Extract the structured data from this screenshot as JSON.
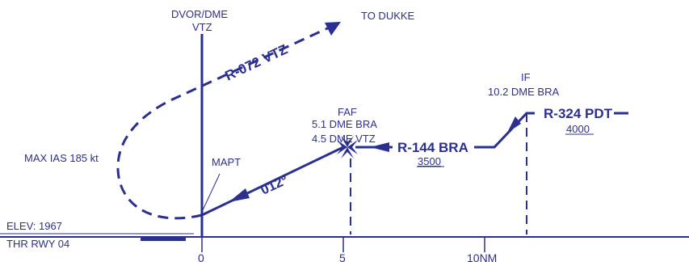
{
  "colors": {
    "ink": "#2b2f8f"
  },
  "labels": {
    "dvor_line1": "DVOR/DME",
    "dvor_line2": "VTZ",
    "to_dukke": "TO DUKKE",
    "radial_072": "R-072 VTZ",
    "max_ias": "MAX IAS 185 kt",
    "mapt": "MAPT",
    "course_012": "012º",
    "faf_title": "FAF",
    "faf_line2": "5.1 DME BRA",
    "faf_line3": "4.5 DME VTZ",
    "radial_144": "R-144 BRA",
    "alt_3500": "3500",
    "if_title": "IF",
    "if_line2": "10.2 DME BRA",
    "radial_324": "R-324 PDT",
    "alt_4000": "4000",
    "elev": "ELEV: 1967",
    "thr": "THR RWY 04"
  },
  "scale": {
    "ticks": [
      "0",
      "5",
      "10NM"
    ]
  }
}
